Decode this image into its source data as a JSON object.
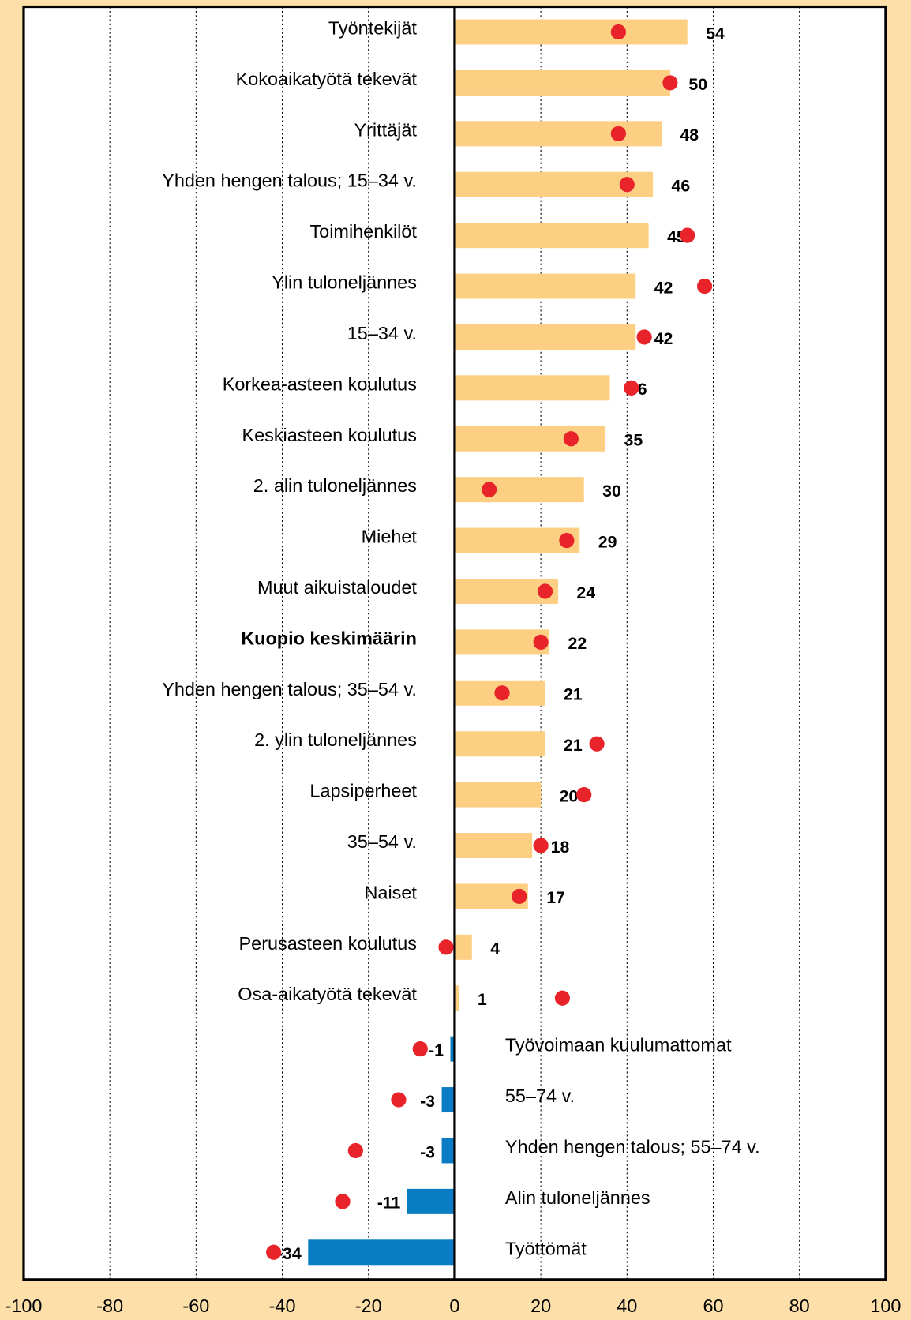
{
  "chart_data": {
    "type": "hbar",
    "categories": [
      "Työntekijät",
      "Kokoaikatyötä tekevät",
      "Yrittäjät",
      "Yhden hengen talous; 15–34 v.",
      "Toimihenkilöt",
      "Ylin tuloneljännes",
      "15–34 v.",
      "Korkea-asteen koulutus",
      "Keskiasteen koulutus",
      "2. alin tuloneljännes",
      "Miehet",
      "Muut aikuistaloudet",
      "Kuopio keskimäärin",
      "Yhden hengen talous; 35–54 v.",
      "2. ylin tuloneljännes",
      "Lapsiperheet",
      "35–54 v.",
      "Naiset",
      "Perusasteen koulutus",
      "Osa-aikatyötä tekevät",
      "Työvoimaan kuulumattomat",
      "55–74 v.",
      "Yhden hengen talous; 55–74 v.",
      "Alin tuloneljännes",
      "Työttömät"
    ],
    "series": [
      {
        "color": "#fdcf83",
        "negative_color": "#0a7cc4",
        "values": [
          54,
          50,
          48,
          46,
          45,
          42,
          42,
          36,
          35,
          30,
          29,
          24,
          22,
          21,
          21,
          20,
          18,
          17,
          4,
          1,
          -1,
          -3,
          -3,
          -11,
          -34
        ]
      },
      {
        "color": "#e8232a",
        "values": [
          38,
          50,
          38,
          40,
          54,
          58,
          44,
          41,
          27,
          8,
          26,
          21,
          20,
          11,
          33,
          30,
          20,
          15,
          -2,
          25,
          -8,
          -13,
          -23,
          -26,
          -42
        ]
      }
    ],
    "xlim": [
      -100,
      100
    ],
    "xticks": [
      -100,
      -80,
      -60,
      -40,
      -20,
      0,
      20,
      40,
      60,
      80,
      100
    ],
    "grid": true
  }
}
